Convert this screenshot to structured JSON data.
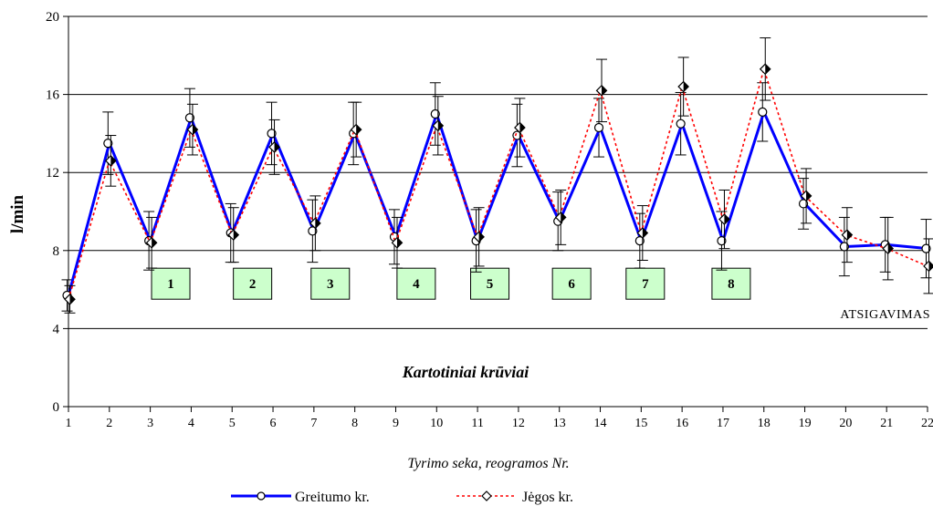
{
  "chart_data": {
    "type": "line",
    "ylabel": "l/min",
    "xlabel": "Tyrimo seka, reogramos Nr.",
    "ylim": [
      0,
      20
    ],
    "yticks": [
      "0",
      "4",
      "8",
      "12",
      "16",
      "20"
    ],
    "xticks": [
      "1",
      "2",
      "3",
      "4",
      "5",
      "6",
      "7",
      "8",
      "9",
      "10",
      "11",
      "12",
      "13",
      "14",
      "15",
      "16",
      "17",
      "18",
      "19",
      "20",
      "21",
      "22"
    ],
    "grid": "horizontal",
    "legend_position": "bottom",
    "series": [
      {
        "name": "Greitumo kr.",
        "color": "#0000ff",
        "line_style": "solid",
        "marker": "circle",
        "values": [
          5.7,
          13.5,
          8.5,
          14.8,
          8.9,
          14.0,
          9.0,
          14.0,
          8.7,
          15.0,
          8.5,
          13.9,
          9.5,
          14.3,
          8.5,
          14.5,
          8.5,
          15.1,
          10.4,
          8.2,
          8.3,
          8.1
        ],
        "error": [
          0.8,
          1.6,
          1.5,
          1.5,
          1.5,
          1.6,
          1.6,
          1.6,
          1.4,
          1.6,
          1.6,
          1.6,
          1.5,
          1.5,
          1.4,
          1.6,
          1.5,
          1.5,
          1.3,
          1.5,
          1.4,
          1.5
        ]
      },
      {
        "name": "Jėgos kr.",
        "color": "#ff0000",
        "line_style": "dotted",
        "marker": "diamond",
        "values": [
          5.5,
          12.6,
          8.4,
          14.2,
          8.8,
          13.3,
          9.4,
          14.2,
          8.4,
          14.4,
          8.7,
          14.3,
          9.7,
          16.2,
          8.9,
          16.4,
          9.6,
          17.3,
          10.8,
          8.8,
          8.1,
          7.2
        ],
        "error": [
          0.7,
          1.3,
          1.3,
          1.3,
          1.4,
          1.4,
          1.4,
          1.4,
          1.3,
          1.5,
          1.5,
          1.5,
          1.4,
          1.6,
          1.4,
          1.5,
          1.5,
          1.6,
          1.4,
          1.4,
          1.6,
          1.4
        ]
      }
    ],
    "boxes": [
      "1",
      "2",
      "3",
      "4",
      "5",
      "6",
      "7",
      "8"
    ],
    "box_x": [
      3.5,
      5.5,
      7.4,
      9.5,
      11.3,
      13.3,
      15.1,
      17.2
    ],
    "box_y": 6.3,
    "box_color": "#ccffcc",
    "annotations": {
      "main": "Kartotiniai krūviai",
      "recovery": "ATSIGAVIMAS"
    }
  }
}
